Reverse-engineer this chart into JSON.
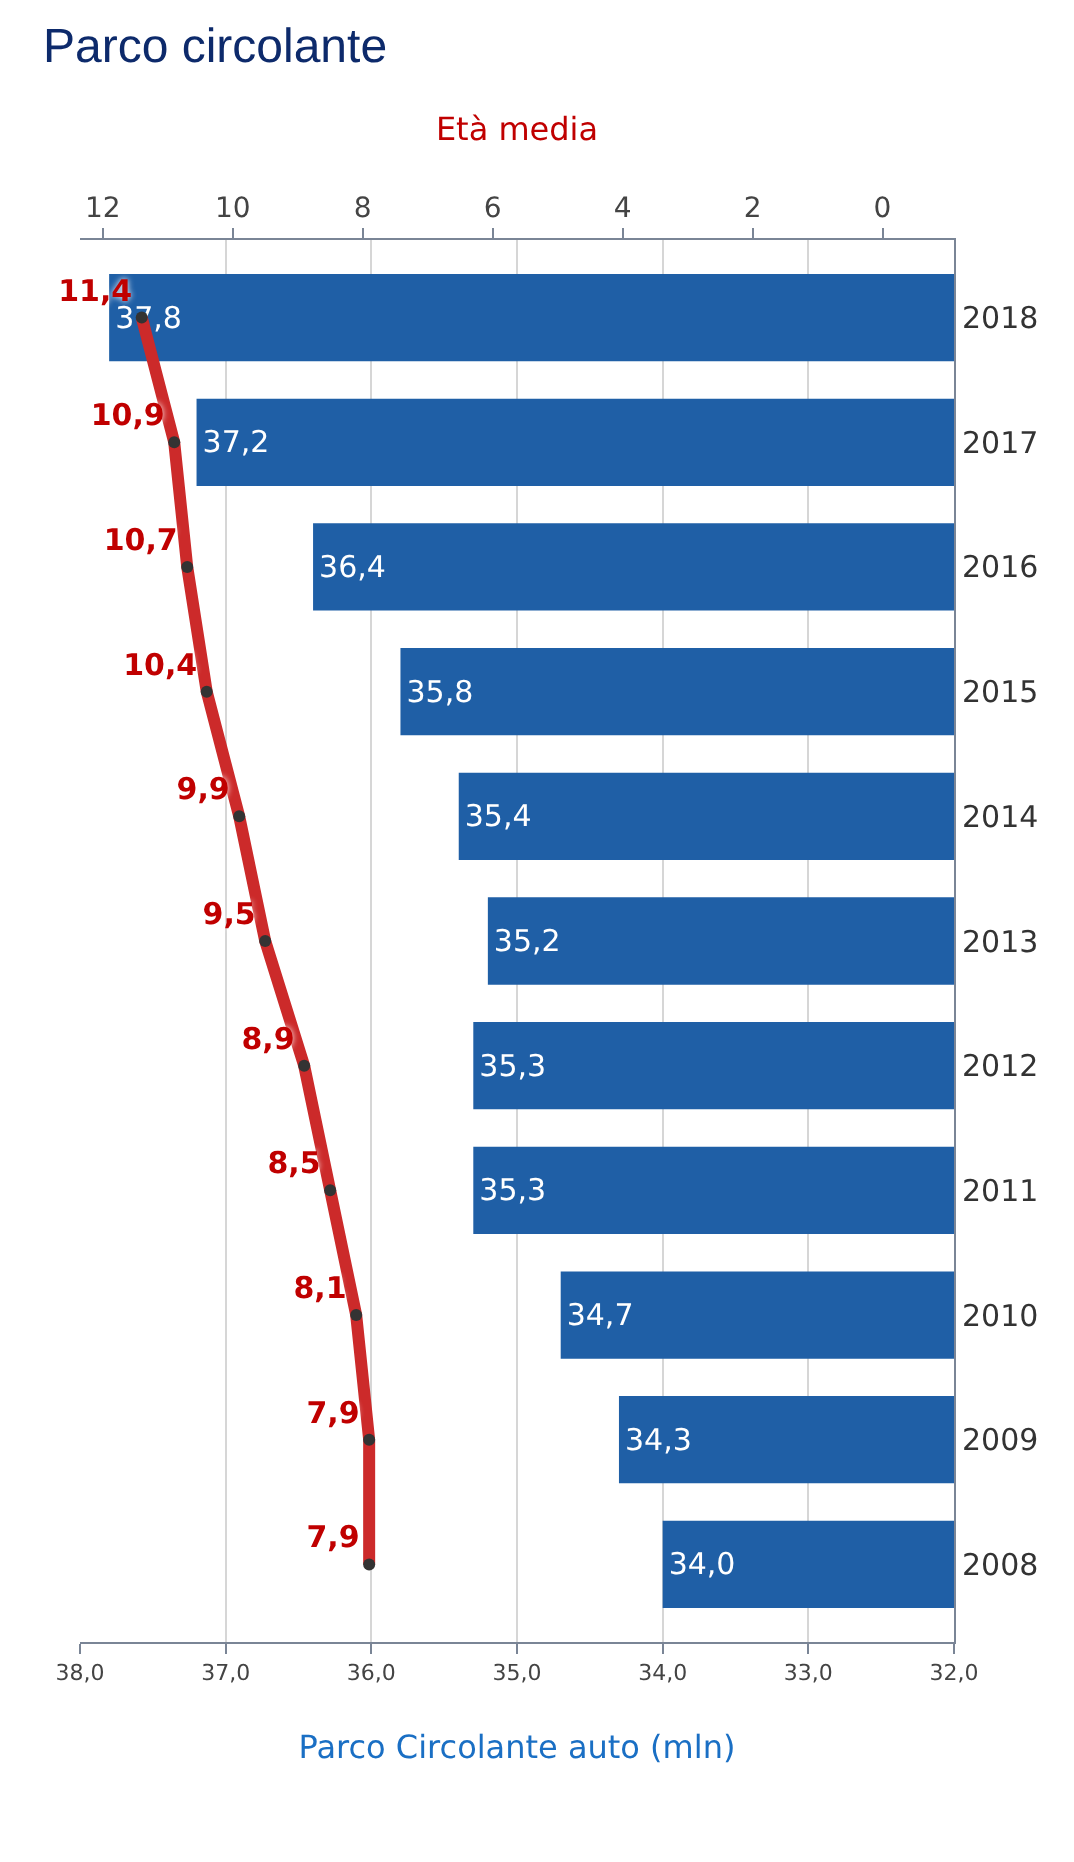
{
  "chart_data": {
    "type": "bar",
    "orientation": "horizontal",
    "title": "Parco circolante",
    "xlabel": "Parco Circolante auto (mln)",
    "x2label": "Età media",
    "categories": [
      "2018",
      "2017",
      "2016",
      "2015",
      "2014",
      "2013",
      "2012",
      "2011",
      "2010",
      "2009",
      "2008"
    ],
    "series": [
      {
        "color": "#1f5fa6",
        "values": [
          37.8,
          37.2,
          36.4,
          35.8,
          35.4,
          35.2,
          35.3,
          35.3,
          34.7,
          34.3,
          34.0
        ],
        "value_labels": [
          "37,8",
          "37,2",
          "36,4",
          "35,8",
          "35,4",
          "35,2",
          "35,3",
          "35,3",
          "34,7",
          "34,3",
          "34,0"
        ]
      },
      {
        "type": "line",
        "axis": "x2",
        "color": "#cc2a2a",
        "marker": "circle",
        "values": [
          11.4,
          10.9,
          10.7,
          10.4,
          9.9,
          9.5,
          8.9,
          8.5,
          8.1,
          7.9,
          7.9
        ],
        "value_labels": [
          "11,4",
          "10,9",
          "10,7",
          "10,4",
          "9,9",
          "9,5",
          "8,9",
          "8,5",
          "8,1",
          "7,9",
          "7,9"
        ]
      }
    ],
    "xlim": [
      38,
      32
    ],
    "xticks": [
      {
        "value": 38,
        "label": "38,0"
      },
      {
        "value": 37,
        "label": "37,0"
      },
      {
        "value": 36,
        "label": "36,0"
      },
      {
        "value": 35,
        "label": "35,0"
      },
      {
        "value": 34,
        "label": "34,0"
      },
      {
        "value": 33,
        "label": "33,0"
      },
      {
        "value": 32,
        "label": "32,0"
      }
    ],
    "x2lim": [
      12.35,
      -1.1
    ],
    "x2ticks": [
      12,
      10,
      8,
      6,
      4,
      2,
      0
    ],
    "grid": "x"
  }
}
